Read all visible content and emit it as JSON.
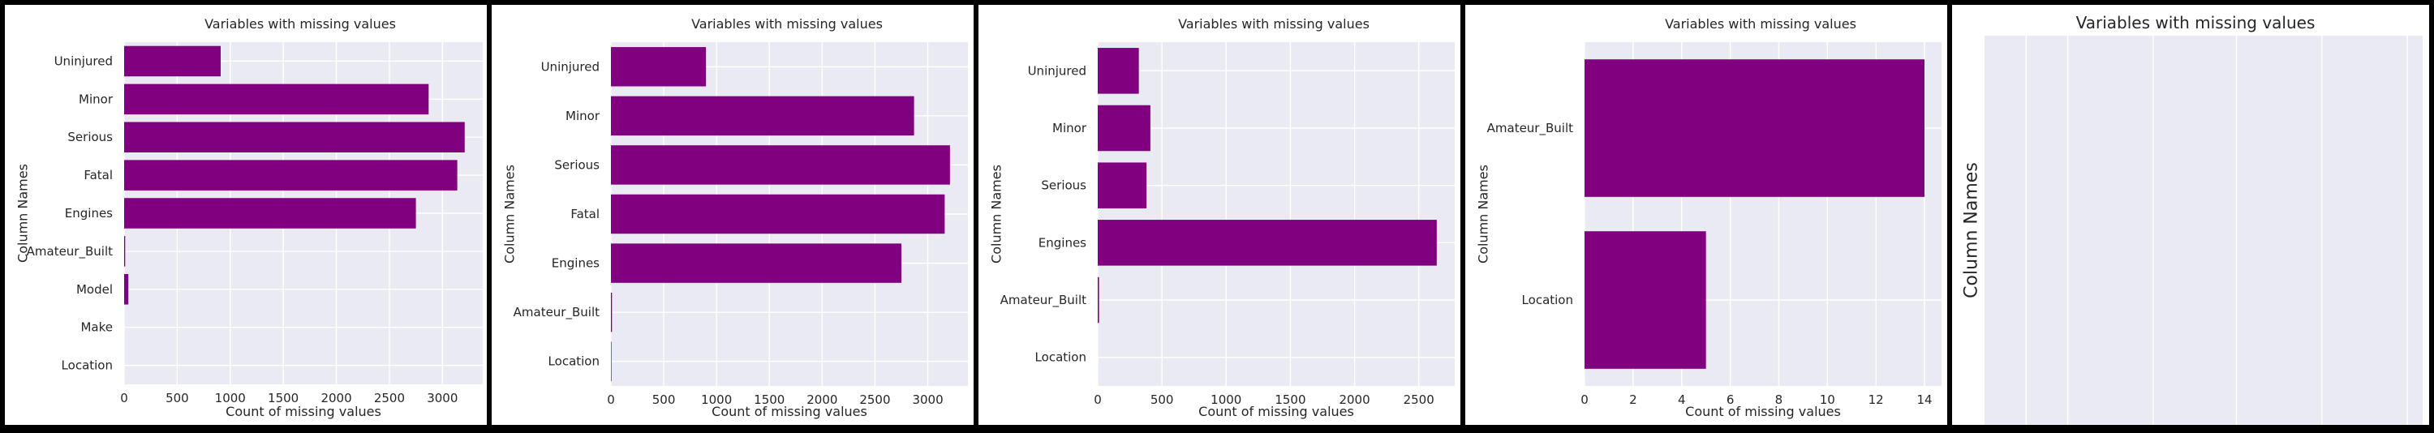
{
  "bar_color": "#800080",
  "plot_bg": "#eaeaf2",
  "grid_color": "#ffffff",
  "chart_data": [
    {
      "type": "bar",
      "orientation": "horizontal",
      "title": "Variables with missing values",
      "xlabel": "Count of missing values",
      "ylabel": "Column Names",
      "categories": [
        "Uninjured",
        "Minor",
        "Serious",
        "Fatal",
        "Engines",
        "Amateur_Built",
        "Model",
        "Make",
        "Location"
      ],
      "values": [
        910,
        2870,
        3210,
        3140,
        2750,
        10,
        40,
        0,
        0
      ],
      "xlim": [
        0,
        3380
      ],
      "xticks": [
        0,
        500,
        1000,
        1500,
        2000,
        2500,
        3000
      ],
      "xtick_labels": [
        "0",
        "500",
        "1000",
        "1500",
        "2000",
        "2500",
        "3000"
      ],
      "grid": true
    },
    {
      "type": "bar",
      "orientation": "horizontal",
      "title": "Variables with missing values",
      "xlabel": "Count of missing values",
      "ylabel": "Column Names",
      "categories": [
        "Uninjured",
        "Minor",
        "Serious",
        "Fatal",
        "Engines",
        "Amateur_Built",
        "Location"
      ],
      "values": [
        900,
        2870,
        3210,
        3160,
        2750,
        10,
        5
      ],
      "xlim": [
        0,
        3380
      ],
      "xticks": [
        0,
        500,
        1000,
        1500,
        2000,
        2500,
        3000
      ],
      "xtick_labels": [
        "0",
        "500",
        "1000",
        "1500",
        "2000",
        "2500",
        "3000"
      ],
      "grid": true
    },
    {
      "type": "bar",
      "orientation": "horizontal",
      "title": "Variables with missing values",
      "xlabel": "Count of missing values",
      "ylabel": "Column Names",
      "categories": [
        "Uninjured",
        "Minor",
        "Serious",
        "Engines",
        "Amateur_Built",
        "Location"
      ],
      "values": [
        320,
        410,
        380,
        2640,
        10,
        0
      ],
      "xlim": [
        0,
        2780
      ],
      "xticks": [
        0,
        500,
        1000,
        1500,
        2000,
        2500
      ],
      "xtick_labels": [
        "0",
        "500",
        "1000",
        "1500",
        "2000",
        "2500"
      ],
      "grid": true
    },
    {
      "type": "bar",
      "orientation": "horizontal",
      "title": "Variables with missing values",
      "xlabel": "Count of missing values",
      "ylabel": "Column Names",
      "categories": [
        "Amateur_Built",
        "Location"
      ],
      "values": [
        14,
        5
      ],
      "xlim": [
        0,
        14.7
      ],
      "xticks": [
        0,
        2,
        4,
        6,
        8,
        10,
        12,
        14
      ],
      "xtick_labels": [
        "0",
        "2",
        "4",
        "6",
        "8",
        "10",
        "12",
        "14"
      ],
      "grid": true
    },
    {
      "type": "bar",
      "orientation": "horizontal",
      "title": "Variables with missing values",
      "xlabel": "",
      "ylabel": "Column Names",
      "categories": [],
      "values": [],
      "grid": true
    }
  ]
}
